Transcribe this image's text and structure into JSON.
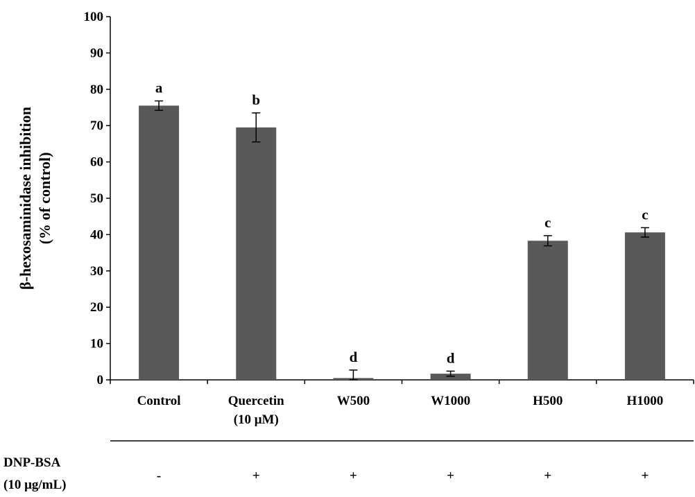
{
  "chart_data": {
    "type": "bar",
    "title": "",
    "ylabel_lines": [
      "β-hexosaminidase inhibition",
      "(% of control)"
    ],
    "xlabel": "",
    "ylim": [
      0,
      100
    ],
    "yticks": [
      0,
      10,
      20,
      30,
      40,
      50,
      60,
      70,
      80,
      90,
      100
    ],
    "categories": [
      {
        "lines": [
          "Control"
        ]
      },
      {
        "lines": [
          "Quercetin",
          "(10 μM)"
        ]
      },
      {
        "lines": [
          "W500"
        ]
      },
      {
        "lines": [
          "W1000"
        ]
      },
      {
        "lines": [
          "H500"
        ]
      },
      {
        "lines": [
          "H1000"
        ]
      }
    ],
    "values": [
      75.5,
      69.5,
      0.5,
      1.7,
      38.3,
      40.6
    ],
    "errors": [
      1.3,
      4.0,
      2.2,
      0.7,
      1.4,
      1.3
    ],
    "significance": [
      "a",
      "b",
      "d",
      "d",
      "c",
      "c"
    ],
    "bar_color": "#595959",
    "grid": false,
    "legend": "none",
    "condition": {
      "label_lines": [
        "DNP-BSA",
        "(10 μg/mL)"
      ],
      "values": [
        "-",
        "+",
        "+",
        "+",
        "+",
        "+"
      ]
    }
  }
}
